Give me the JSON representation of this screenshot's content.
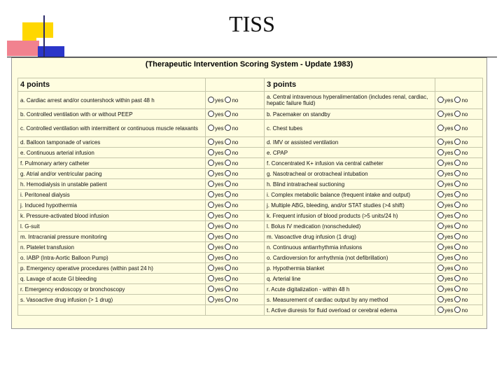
{
  "slide": {
    "title": "TISS"
  },
  "panel": {
    "title": "(Therapeutic Intervention Scoring System - Update 1983)"
  },
  "columns": {
    "left_header": "4 points",
    "right_header": "3 points"
  },
  "options": {
    "yes": "yes",
    "no": "no"
  },
  "left_items": [
    "a. Cardiac arrest and/or countershock within past 48 h",
    "b. Controlled ventilation with or without PEEP",
    "c. Controlled ventilation with intermittent or continuous muscle relaxants",
    "d. Balloon tamponade of varices",
    "e. Continuous arterial infusion",
    "f. Pulmonary artery catheter",
    "g. Atrial and/or ventricular pacing",
    "h. Hemodialysis in unstable patient",
    "i. Peritoneal dialysis",
    "j. Induced hypothermia",
    "k. Pressure-activated blood infusion",
    "l. G-suit",
    "m. Intracranial pressure monitoring",
    "n. Platelet transfusion",
    "o. IABP (Intra-Aortic Balloon Pump)",
    "p. Emergency operative procedures (within past 24 h)",
    "q. Lavage of acute GI bleeding",
    "r. Emergency endoscopy or bronchoscopy",
    "s. Vasoactive drug infusion (> 1 drug)",
    ""
  ],
  "right_items": [
    "a. Central intravenous hyperalimentation (includes renal, cardiac, hepatic failure fluid)",
    "b. Pacemaker on standby",
    "c. Chest tubes",
    "d. IMV or assisted ventilation",
    "e. CPAP",
    "f. Concentrated K+ infusion via central catheter",
    "g. Nasotracheal or orotracheal intubation",
    "h. Blind intratracheal suctioning",
    "i. Complex metabolic balance (frequent intake and output)",
    "j. Multiple ABG, bleeding, and/or STAT studies (>4 shift)",
    "k. Frequent infusion of blood products (>5 units/24 h)",
    "l. Bolus IV medication (nonscheduled)",
    "m. Vasoactive drug infusion (1 drug)",
    "n. Continuous antiarrhythmia infusions",
    "o. Cardioversion for arrhythmia (not defibrillation)",
    "p. Hypothermia blanket",
    "q. Arterial line",
    "r. Acute digitalization - within 48 h",
    "s. Measurement of cardiac output by any method",
    "t. Active diuresis for fluid overload or cerebral edema"
  ],
  "colors": {
    "panel_bg": "#fffde0",
    "deco_yellow": "#ffd700",
    "deco_red": "#f1828f",
    "deco_blue": "#2b36c9"
  }
}
